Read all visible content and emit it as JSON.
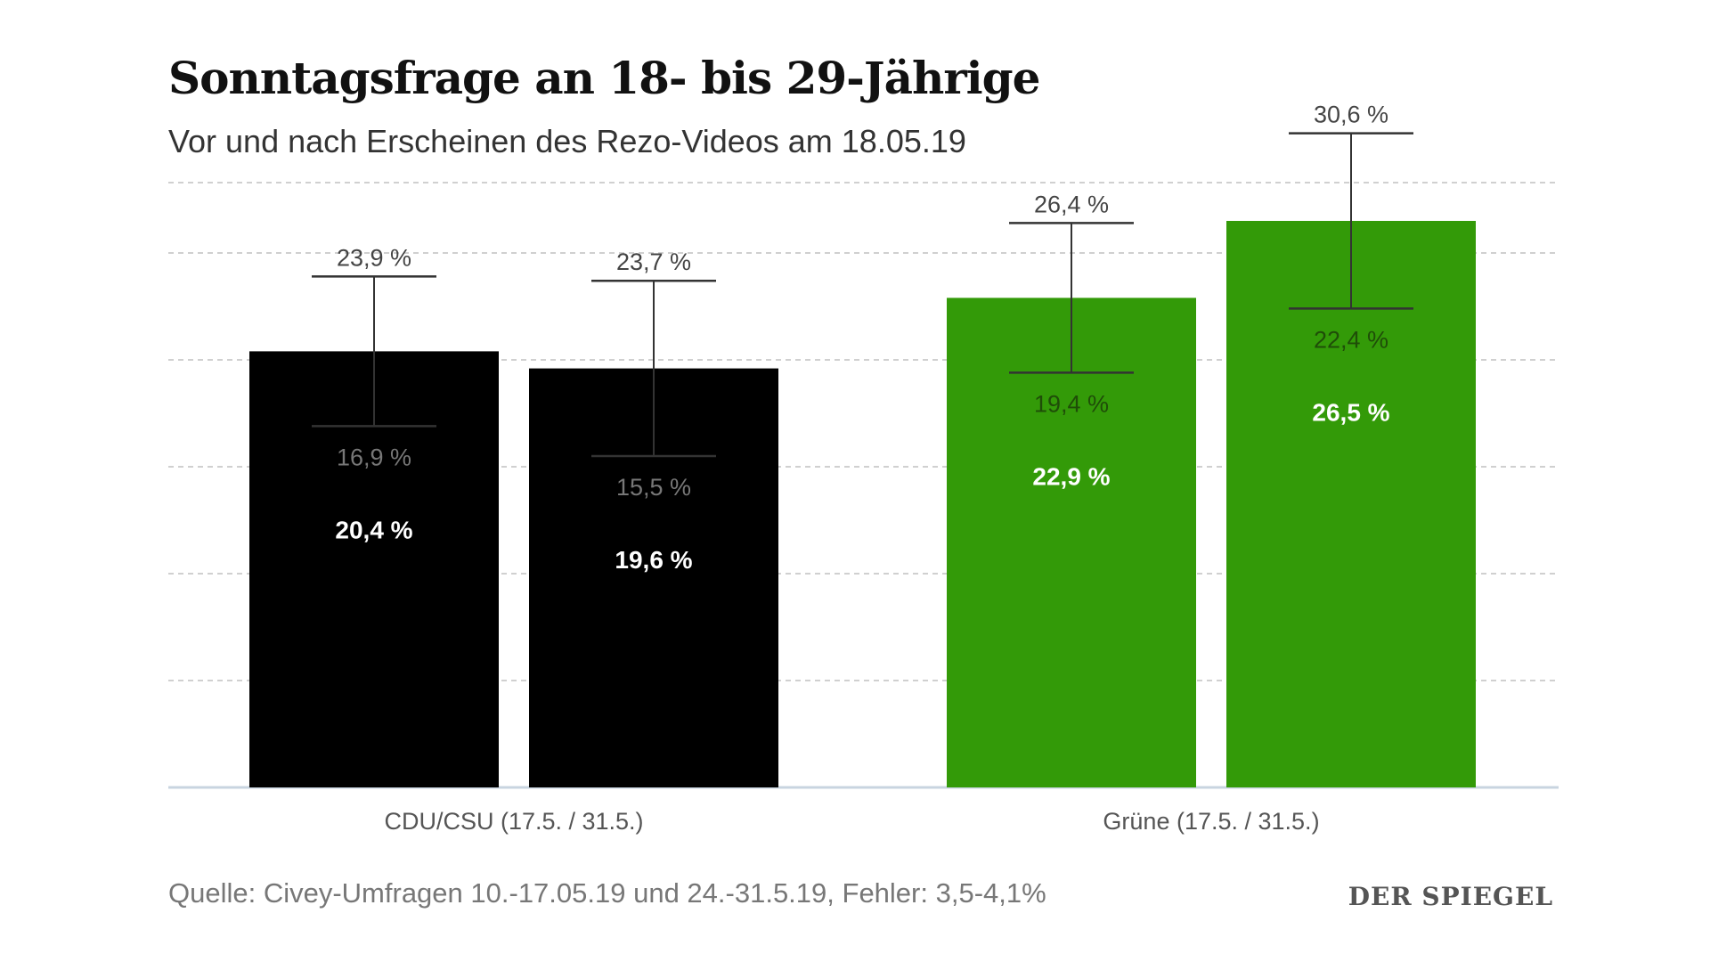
{
  "title": "Sonntagsfrage an 18- bis 29-Jährige",
  "subtitle": "Vor und nach Erscheinen des Rezo-Videos am 18.05.19",
  "source": "Quelle: Civey-Umfragen 10.-17.05.19 und 24.-31.5.19, Fehler: 3,5-4,1%",
  "logo": "DER SPIEGEL",
  "colors": {
    "cdu": "#000000",
    "gruene": "#339a08",
    "grid": "#d0d0d0",
    "axis": "#c8d4e0",
    "whisker": "#333333"
  },
  "chart_data": {
    "type": "bar",
    "title": "Sonntagsfrage an 18- bis 29-Jährige",
    "subtitle": "Vor und nach Erscheinen des Rezo-Videos am 18.05.19",
    "ylim": [
      0,
      35
    ],
    "grid": true,
    "groups": [
      {
        "label": "CDU/CSU (17.5. / 31.5.)",
        "color": "#000000",
        "bars": [
          {
            "value": 20.4,
            "low": 16.9,
            "high": 23.9,
            "value_label": "20,4 %",
            "low_label": "16,9 %",
            "high_label": "23,9 %"
          },
          {
            "value": 19.6,
            "low": 15.5,
            "high": 23.7,
            "value_label": "19,6 %",
            "low_label": "15,5 %",
            "high_label": "23,7 %"
          }
        ]
      },
      {
        "label": "Grüne (17.5. / 31.5.)",
        "color": "#339a08",
        "bars": [
          {
            "value": 22.9,
            "low": 19.4,
            "high": 26.4,
            "value_label": "22,9 %",
            "low_label": "19,4 %",
            "high_label": "26,4 %"
          },
          {
            "value": 26.5,
            "low": 22.4,
            "high": 30.6,
            "value_label": "26,5 %",
            "low_label": "22,4 %",
            "high_label": "30,6 %"
          }
        ]
      }
    ]
  }
}
